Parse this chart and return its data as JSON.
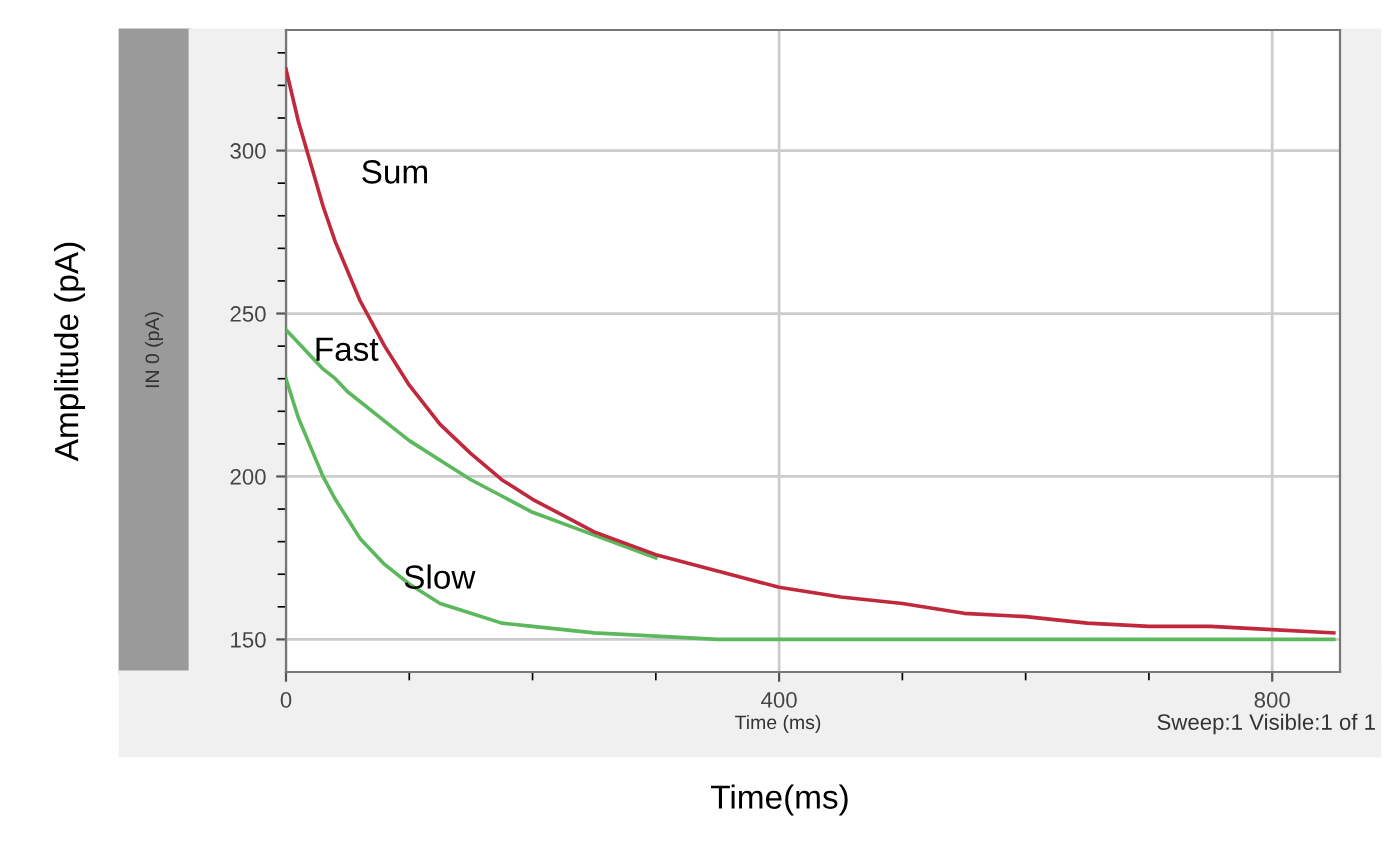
{
  "chart_data": {
    "type": "line",
    "xlabel": "Time(ms)",
    "ylabel": "Amplitude (pA)",
    "annotations": [
      "IN 0 (pA)",
      "Time (ms)",
      "Sweep:1 Visible:1 of 1"
    ],
    "x": [
      0,
      10,
      20,
      30,
      40,
      50,
      60,
      80,
      100,
      125,
      150,
      175,
      200,
      250,
      300,
      350,
      400,
      450,
      500,
      550,
      600,
      650,
      700,
      750,
      800,
      850
    ],
    "series": [
      {
        "name": "Sum",
        "color": "#c0283c",
        "values": [
          325,
          309,
          296,
          283,
          272,
          263,
          254,
          240,
          228,
          216,
          207,
          199,
          193,
          183,
          176,
          171,
          166,
          163,
          161,
          158,
          157,
          155,
          154,
          154,
          153,
          152
        ]
      },
      {
        "name": "Fast",
        "color": "#5cb85c",
        "values": [
          245,
          241,
          237,
          233,
          230,
          226,
          223,
          217,
          211,
          205,
          199,
          194,
          189,
          182,
          175,
          null,
          null,
          null,
          null,
          null,
          null,
          null,
          null,
          null,
          null,
          null
        ]
      },
      {
        "name": "Slow",
        "color": "#5cb85c",
        "values": [
          230,
          218,
          209,
          200,
          193,
          187,
          181,
          173,
          167,
          161,
          158,
          155,
          154,
          152,
          151,
          150,
          150,
          150,
          150,
          150,
          150,
          150,
          150,
          150,
          150,
          150
        ]
      }
    ],
    "xlim": [
      0,
      855
    ],
    "ylim": [
      140,
      337
    ],
    "xticks": [
      0,
      {
        "value": 100,
        "label": null
      },
      {
        "value": 200,
        "label": null
      },
      {
        "value": 300,
        "label": null
      },
      400,
      {
        "value": 500,
        "label": null
      },
      {
        "value": 600,
        "label": null
      },
      {
        "value": 700,
        "label": null
      },
      800
    ],
    "yticks": [
      150,
      {
        "value": 160,
        "label": null
      },
      {
        "value": 170,
        "label": null
      },
      {
        "value": 180,
        "label": null
      },
      {
        "value": 190,
        "label": null
      },
      200,
      {
        "value": 210,
        "label": null
      },
      {
        "value": 220,
        "label": null
      },
      {
        "value": 230,
        "label": null
      },
      {
        "value": 240,
        "label": null
      },
      250,
      {
        "value": 260,
        "label": null
      },
      {
        "value": 270,
        "label": null
      },
      {
        "value": 280,
        "label": null
      },
      {
        "value": 290,
        "label": null
      },
      300,
      {
        "value": 310,
        "label": null
      },
      {
        "value": 320,
        "label": null
      },
      {
        "value": 330,
        "label": null
      }
    ],
    "grid": true,
    "legend": false,
    "marker": "none",
    "line_style": "solid"
  }
}
